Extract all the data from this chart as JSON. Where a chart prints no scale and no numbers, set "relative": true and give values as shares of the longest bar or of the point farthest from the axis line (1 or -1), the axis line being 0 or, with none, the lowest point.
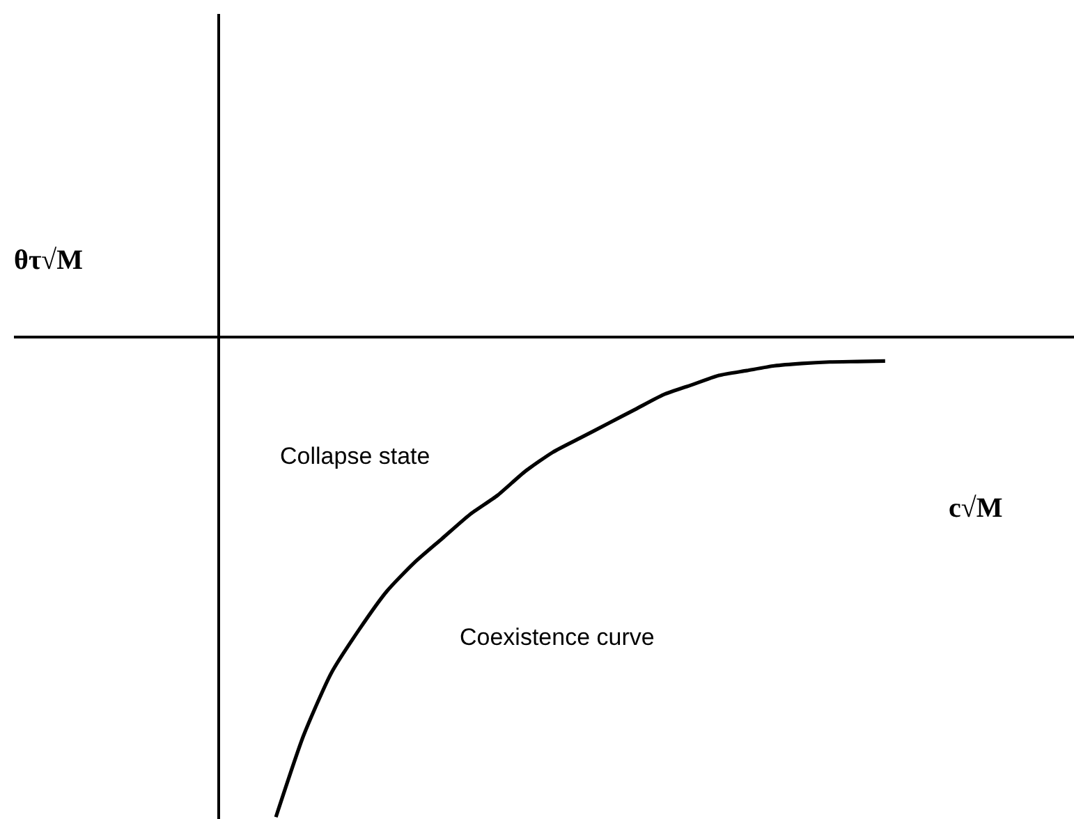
{
  "chart_data": {
    "type": "line",
    "relative": true,
    "xlabel": "c√M",
    "annotations": [
      "θτ√M",
      "Collapse state",
      "Coexistence curve"
    ],
    "categories": [
      null,
      null,
      null,
      null,
      null,
      null,
      null,
      null,
      null,
      null,
      null,
      null,
      null,
      null,
      null,
      null,
      null,
      null,
      null,
      null,
      null,
      null,
      null
    ],
    "series": [
      {
        "color": "#000000",
        "values": [
          -1,
          -0.83,
          -0.7,
          -0.61,
          -0.53,
          -0.47,
          -0.42,
          -0.37,
          -0.33,
          -0.28,
          -0.24,
          -0.21,
          -0.18,
          -0.15,
          -0.12,
          -0.1,
          -0.08,
          -0.07,
          -0.06,
          -0.055,
          -0.052,
          -0.051,
          -0.05
        ]
      }
    ]
  }
}
